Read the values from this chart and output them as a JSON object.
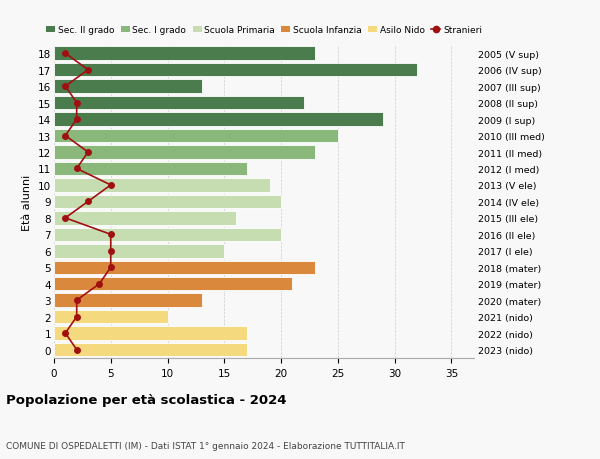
{
  "ages": [
    18,
    17,
    16,
    15,
    14,
    13,
    12,
    11,
    10,
    9,
    8,
    7,
    6,
    5,
    4,
    3,
    2,
    1,
    0
  ],
  "labels_right": [
    "2005 (V sup)",
    "2006 (IV sup)",
    "2007 (III sup)",
    "2008 (II sup)",
    "2009 (I sup)",
    "2010 (III med)",
    "2011 (II med)",
    "2012 (I med)",
    "2013 (V ele)",
    "2014 (IV ele)",
    "2015 (III ele)",
    "2016 (II ele)",
    "2017 (I ele)",
    "2018 (mater)",
    "2019 (mater)",
    "2020 (mater)",
    "2021 (nido)",
    "2022 (nido)",
    "2023 (nido)"
  ],
  "bar_values": [
    23,
    32,
    13,
    22,
    29,
    25,
    23,
    17,
    19,
    20,
    16,
    20,
    15,
    23,
    21,
    13,
    10,
    17,
    17
  ],
  "bar_colors": [
    "#4a7c4e",
    "#4a7c4e",
    "#4a7c4e",
    "#4a7c4e",
    "#4a7c4e",
    "#8ab87a",
    "#8ab87a",
    "#8ab87a",
    "#c5ddb0",
    "#c5ddb0",
    "#c5ddb0",
    "#c5ddb0",
    "#c5ddb0",
    "#d9883c",
    "#d9883c",
    "#d9883c",
    "#f5d97e",
    "#f5d97e",
    "#f5d97e"
  ],
  "stranieri_values": [
    1,
    3,
    1,
    2,
    2,
    1,
    3,
    2,
    5,
    3,
    1,
    5,
    5,
    5,
    4,
    2,
    2,
    1,
    2
  ],
  "ylabel_left": "Età alunni",
  "title": "Popolazione per età scolastica - 2024",
  "subtitle": "COMUNE DI OSPEDALETTI (IM) - Dati ISTAT 1° gennaio 2024 - Elaborazione TUTTITALIA.IT",
  "xlim": [
    0,
    37
  ],
  "xticks": [
    0,
    5,
    10,
    15,
    20,
    25,
    30,
    35
  ],
  "legend_labels": [
    "Sec. II grado",
    "Sec. I grado",
    "Scuola Primaria",
    "Scuola Infanzia",
    "Asilo Nido",
    "Stranieri"
  ],
  "legend_colors": [
    "#4a7c4e",
    "#8ab87a",
    "#c5ddb0",
    "#d9883c",
    "#f5d97e",
    "#a01010"
  ],
  "stranieri_color": "#a01010",
  "background_color": "#f8f8f8",
  "grid_color": "#cccccc"
}
